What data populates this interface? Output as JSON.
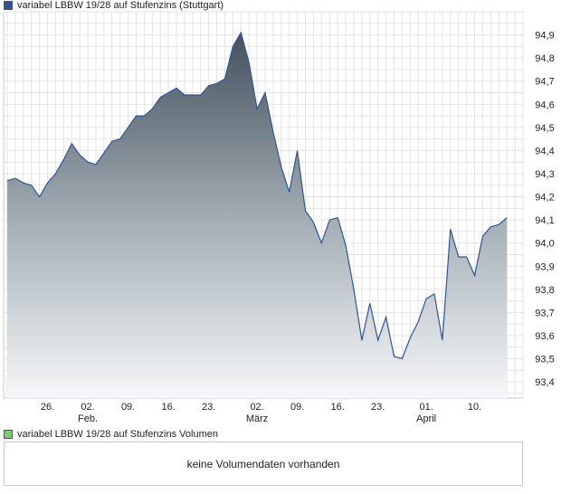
{
  "legend": {
    "main_label": "variabel LBBW 19/28 auf Stufenzins (Stuttgart)",
    "main_color": "#2f5597",
    "volume_label": "variabel LBBW 19/28 auf Stufenzins Volumen",
    "volume_color": "#7fc97f"
  },
  "volume_panel": {
    "message": "keine Volumendaten vorhanden"
  },
  "chart_data": {
    "type": "area",
    "title": "variabel LBBW 19/28 auf Stufenzins (Stuttgart)",
    "xlabel": "",
    "ylabel": "",
    "ylim": [
      93.33,
      95.0
    ],
    "y_ticks": [
      "93,4",
      "93,5",
      "93,6",
      "93,7",
      "93,8",
      "93,9",
      "94,0",
      "94,1",
      "94,2",
      "94,3",
      "94,4",
      "94,5",
      "94,6",
      "94,7",
      "94,8",
      "94,9"
    ],
    "y_tick_values": [
      93.4,
      93.5,
      93.6,
      93.7,
      93.8,
      93.9,
      94.0,
      94.1,
      94.2,
      94.3,
      94.4,
      94.5,
      94.6,
      94.7,
      94.8,
      94.9
    ],
    "x_ticks": [
      {
        "label": "26.",
        "sublabel": "",
        "x": 5
      },
      {
        "label": "02.",
        "sublabel": "Feb.",
        "x": 10
      },
      {
        "label": "09.",
        "sublabel": "",
        "x": 15
      },
      {
        "label": "16.",
        "sublabel": "",
        "x": 20
      },
      {
        "label": "23.",
        "sublabel": "",
        "x": 25
      },
      {
        "label": "02.",
        "sublabel": "März",
        "x": 31
      },
      {
        "label": "09.",
        "sublabel": "",
        "x": 36
      },
      {
        "label": "16.",
        "sublabel": "",
        "x": 41
      },
      {
        "label": "23.",
        "sublabel": "",
        "x": 46
      },
      {
        "label": "01.",
        "sublabel": "April",
        "x": 52
      },
      {
        "label": "10.",
        "sublabel": "",
        "x": 58
      }
    ],
    "x_range": [
      0,
      64
    ],
    "grid": true,
    "series": [
      {
        "color": "#2f5597",
        "values": [
          94.27,
          94.28,
          94.26,
          94.25,
          94.2,
          94.26,
          94.3,
          94.36,
          94.43,
          94.38,
          94.35,
          94.34,
          94.39,
          94.44,
          94.45,
          94.5,
          94.55,
          94.55,
          94.58,
          94.63,
          94.65,
          94.67,
          94.64,
          94.64,
          94.64,
          94.68,
          94.69,
          94.71,
          94.85,
          94.91,
          94.78,
          94.58,
          94.65,
          94.48,
          94.33,
          94.22,
          94.4,
          94.14,
          94.09,
          94.0,
          94.1,
          94.11,
          93.99,
          93.8,
          93.58,
          93.74,
          93.58,
          93.68,
          93.51,
          93.5,
          93.59,
          93.66,
          93.76,
          93.78,
          93.58,
          94.06,
          93.94,
          93.94,
          93.86,
          94.03,
          94.07,
          94.08,
          94.11
        ]
      }
    ]
  }
}
